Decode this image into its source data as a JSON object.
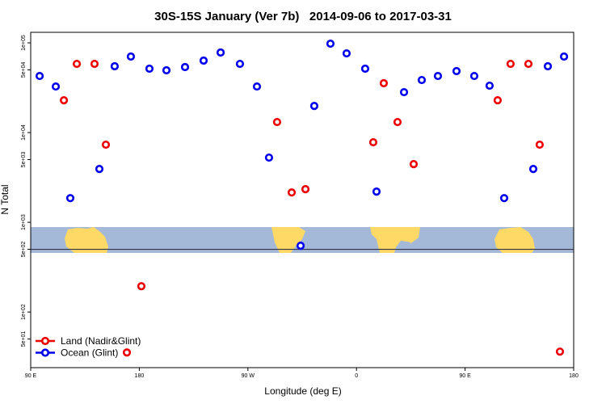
{
  "chart_data": {
    "type": "scatter",
    "title": "30S-15S January (Ver 7b)   2014-09-06 to 2017-03-31",
    "x_label": "Longitude (deg E)",
    "y_label": "N Total",
    "log_y": true,
    "legend": "lower left",
    "xlim": [
      90,
      540
    ],
    "xticks": [
      {
        "value": 90,
        "label": "90 E"
      },
      {
        "value": 180,
        "label": "180"
      },
      {
        "value": 270,
        "label": "90 W"
      },
      {
        "value": 360,
        "label": "0"
      },
      {
        "value": 450,
        "label": "90 E"
      },
      {
        "value": 540,
        "label": "180"
      }
    ],
    "ylim": [
      24,
      131000
    ],
    "yticks": [
      {
        "value": 50,
        "label": "5e+01"
      },
      {
        "value": 100,
        "label": "1e+02"
      },
      {
        "value": 500,
        "label": "5e+02"
      },
      {
        "value": 1000,
        "label": "1e+03"
      },
      {
        "value": 5000,
        "label": "5e+03"
      },
      {
        "value": 10000,
        "label": "1e+04"
      },
      {
        "value": 50000,
        "label": "5e+04"
      },
      {
        "value": 100000,
        "label": "1e+05"
      }
    ],
    "series": [
      {
        "name": "Land (Nadir&Glint)",
        "color": "#ee0000",
        "x": [
          117.5,
          128.2,
          142.9,
          152.3,
          181.7,
          294.2,
          306.3,
          317.7,
          373.9,
          382.6,
          394,
          407.4,
          477,
          487.7,
          502.5,
          511.8,
          528.6,
          169.7
        ],
        "values": [
          22900,
          58300,
          58300,
          7330,
          194,
          13100,
          2150,
          2340,
          7800,
          35500,
          13100,
          4450,
          22900,
          58300,
          58300,
          7330,
          36.2,
          35.4
        ]
      },
      {
        "name": "Ocean (Glint)",
        "color": "#0000ee",
        "x": [
          97.4,
          110.8,
          122.8,
          146.9,
          159.6,
          173,
          188.4,
          202.5,
          217.9,
          233.3,
          247.4,
          263.4,
          277.5,
          287.5,
          313.7,
          325,
          338.4,
          351.8,
          367.2,
          376.6,
          399.4,
          414.1,
          427.5,
          442.9,
          457.6,
          470.3,
          482.4,
          506.5,
          518.6,
          532
        ],
        "values": [
          42700,
          32600,
          1860,
          3930,
          54800,
          70300,
          51500,
          49400,
          53700,
          63400,
          78000,
          58300,
          32600,
          5260,
          548,
          19800,
          97900,
          76300,
          51500,
          2200,
          28200,
          38500,
          42700,
          48400,
          42700,
          33300,
          1860,
          3930,
          54800,
          70300
        ]
      }
    ]
  }
}
